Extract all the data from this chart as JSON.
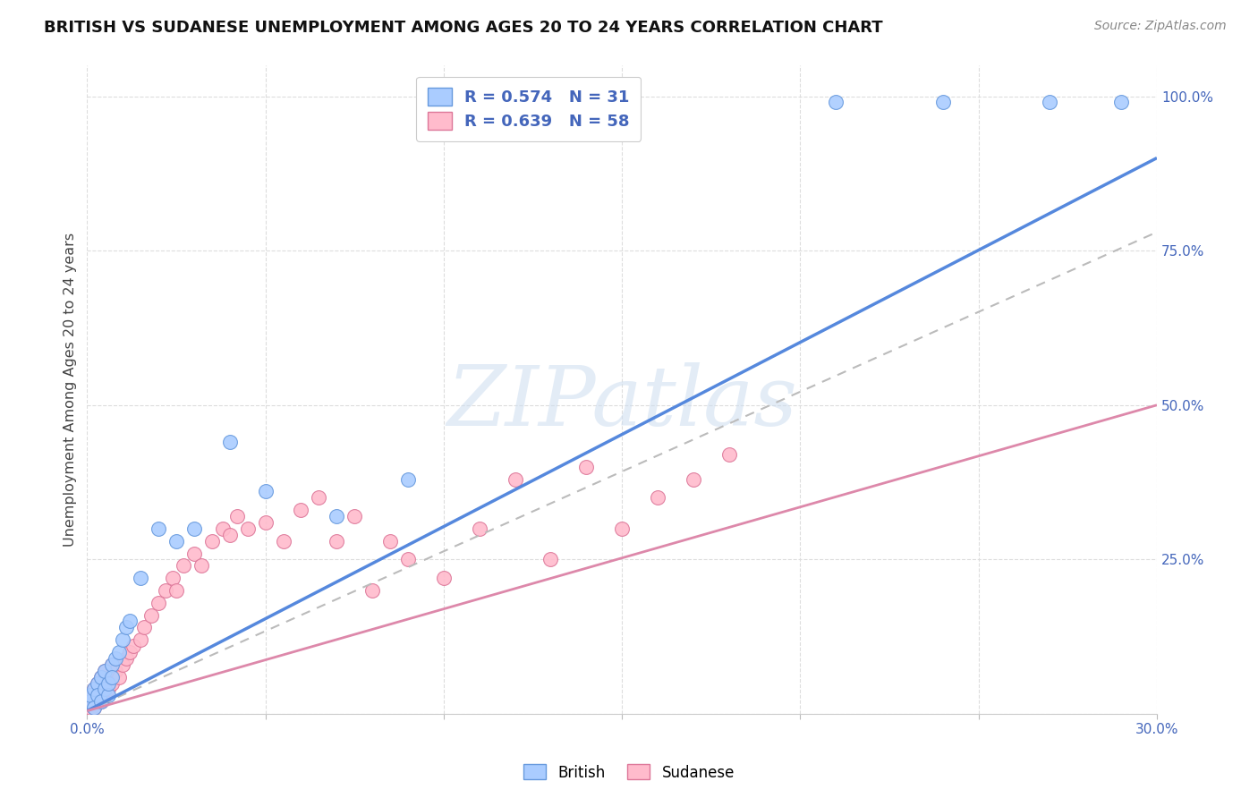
{
  "title": "BRITISH VS SUDANESE UNEMPLOYMENT AMONG AGES 20 TO 24 YEARS CORRELATION CHART",
  "source": "Source: ZipAtlas.com",
  "ylabel": "Unemployment Among Ages 20 to 24 years",
  "xlim": [
    0.0,
    0.3
  ],
  "ylim": [
    0.0,
    1.05
  ],
  "xticks": [
    0.0,
    0.05,
    0.1,
    0.15,
    0.2,
    0.25,
    0.3
  ],
  "xticklabels": [
    "0.0%",
    "",
    "",
    "",
    "",
    "",
    "30.0%"
  ],
  "yticks": [
    0.0,
    0.25,
    0.5,
    0.75,
    1.0
  ],
  "yticklabels": [
    "",
    "25.0%",
    "50.0%",
    "75.0%",
    "100.0%"
  ],
  "british_fill_color": "#aaccff",
  "british_edge_color": "#6699dd",
  "sudanese_fill_color": "#ffbbcc",
  "sudanese_edge_color": "#dd7799",
  "british_line_color": "#5588dd",
  "sudanese_line_color": "#dd88aa",
  "legend_text_color": "#4466bb",
  "background_color": "#ffffff",
  "watermark": "ZIPatlas",
  "british_R": "0.574",
  "british_N": "31",
  "sudanese_R": "0.639",
  "sudanese_N": "58",
  "british_line_x0": 0.0,
  "british_line_y0": 0.005,
  "british_line_x1": 0.3,
  "british_line_y1": 0.9,
  "sudanese_line_x0": 0.0,
  "sudanese_line_y0": 0.005,
  "sudanese_line_x1": 0.3,
  "sudanese_line_y1": 0.5,
  "british_x": [
    0.001,
    0.001,
    0.002,
    0.002,
    0.003,
    0.003,
    0.004,
    0.004,
    0.005,
    0.005,
    0.006,
    0.006,
    0.007,
    0.007,
    0.008,
    0.009,
    0.01,
    0.011,
    0.012,
    0.015,
    0.02,
    0.025,
    0.03,
    0.04,
    0.05,
    0.07,
    0.09,
    0.21,
    0.24,
    0.27,
    0.29
  ],
  "british_y": [
    0.02,
    0.03,
    0.01,
    0.04,
    0.05,
    0.03,
    0.06,
    0.02,
    0.04,
    0.07,
    0.03,
    0.05,
    0.08,
    0.06,
    0.09,
    0.1,
    0.12,
    0.14,
    0.15,
    0.22,
    0.3,
    0.28,
    0.3,
    0.44,
    0.36,
    0.32,
    0.38,
    0.99,
    0.99,
    0.99,
    0.99
  ],
  "sudanese_x": [
    0.001,
    0.001,
    0.001,
    0.002,
    0.002,
    0.002,
    0.003,
    0.003,
    0.003,
    0.004,
    0.004,
    0.004,
    0.005,
    0.005,
    0.005,
    0.006,
    0.006,
    0.007,
    0.007,
    0.008,
    0.009,
    0.01,
    0.011,
    0.012,
    0.013,
    0.015,
    0.016,
    0.018,
    0.02,
    0.022,
    0.024,
    0.025,
    0.027,
    0.03,
    0.032,
    0.035,
    0.038,
    0.04,
    0.042,
    0.045,
    0.05,
    0.055,
    0.06,
    0.065,
    0.07,
    0.075,
    0.08,
    0.085,
    0.09,
    0.1,
    0.11,
    0.12,
    0.13,
    0.14,
    0.15,
    0.16,
    0.17,
    0.18
  ],
  "sudanese_y": [
    0.01,
    0.02,
    0.03,
    0.01,
    0.02,
    0.04,
    0.02,
    0.03,
    0.05,
    0.02,
    0.04,
    0.06,
    0.03,
    0.05,
    0.07,
    0.04,
    0.06,
    0.05,
    0.08,
    0.07,
    0.06,
    0.08,
    0.09,
    0.1,
    0.11,
    0.12,
    0.14,
    0.16,
    0.18,
    0.2,
    0.22,
    0.2,
    0.24,
    0.26,
    0.24,
    0.28,
    0.3,
    0.29,
    0.32,
    0.3,
    0.31,
    0.28,
    0.33,
    0.35,
    0.28,
    0.32,
    0.2,
    0.28,
    0.25,
    0.22,
    0.3,
    0.38,
    0.25,
    0.4,
    0.3,
    0.35,
    0.38,
    0.42
  ]
}
